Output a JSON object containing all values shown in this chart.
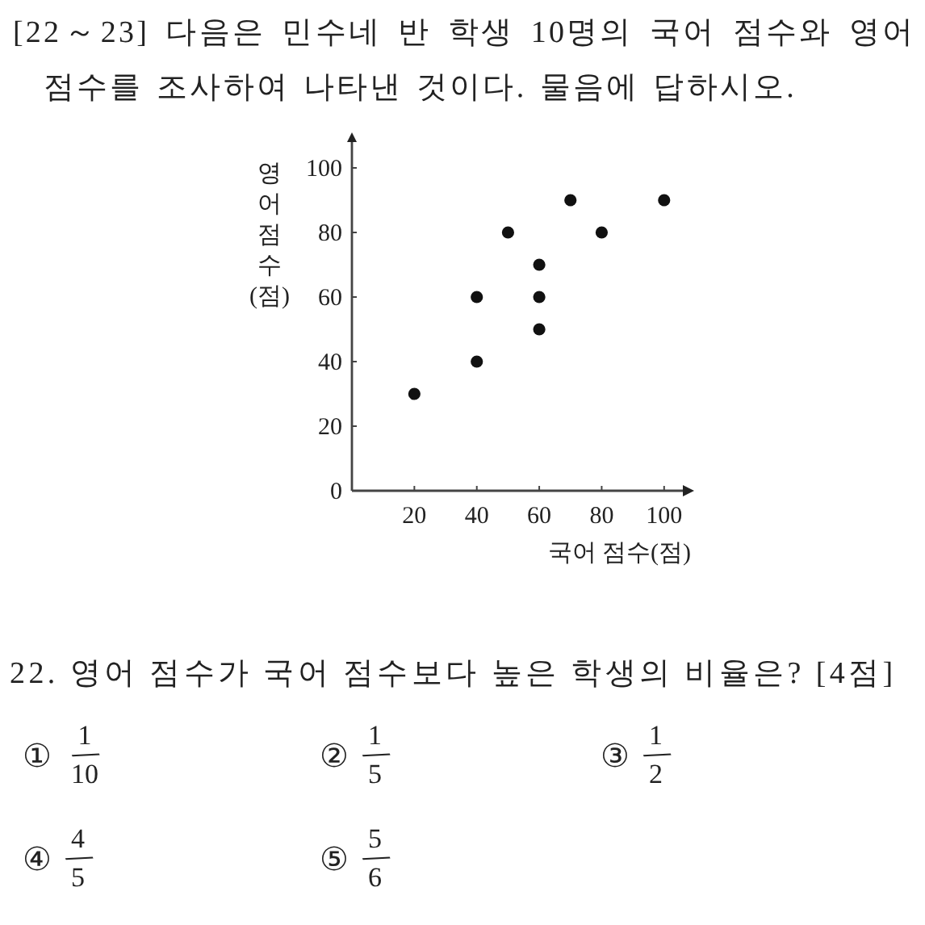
{
  "chart_data": {
    "type": "scatter",
    "title": "[22～23] 다음은 민수네 반 학생 10명의 국어 점수와 영어 점수를 조사하여 나타낸 것이다. 물음에 답하시오.",
    "xlabel": "국어 점수(점)",
    "ylabel": "영어 점수(점)",
    "x": [
      20,
      40,
      40,
      50,
      60,
      60,
      60,
      70,
      80,
      100
    ],
    "values": [
      30,
      40,
      60,
      80,
      50,
      60,
      70,
      90,
      80,
      90
    ],
    "color": "#111111",
    "marker": "circle",
    "xlim": [
      0,
      106
    ],
    "ylim": [
      0,
      108
    ],
    "xticks": [
      20,
      40,
      60,
      80,
      100
    ],
    "yticks": [
      0,
      20,
      40,
      60,
      80,
      100
    ],
    "annotations": [
      "22. 영어 점수가 국어 점수보다 높은 학생의 비율은? [4점]",
      "① 1/10",
      "② 1/5",
      "③ 1/2",
      "④ 4/5",
      "⑤ 5/6"
    ]
  }
}
